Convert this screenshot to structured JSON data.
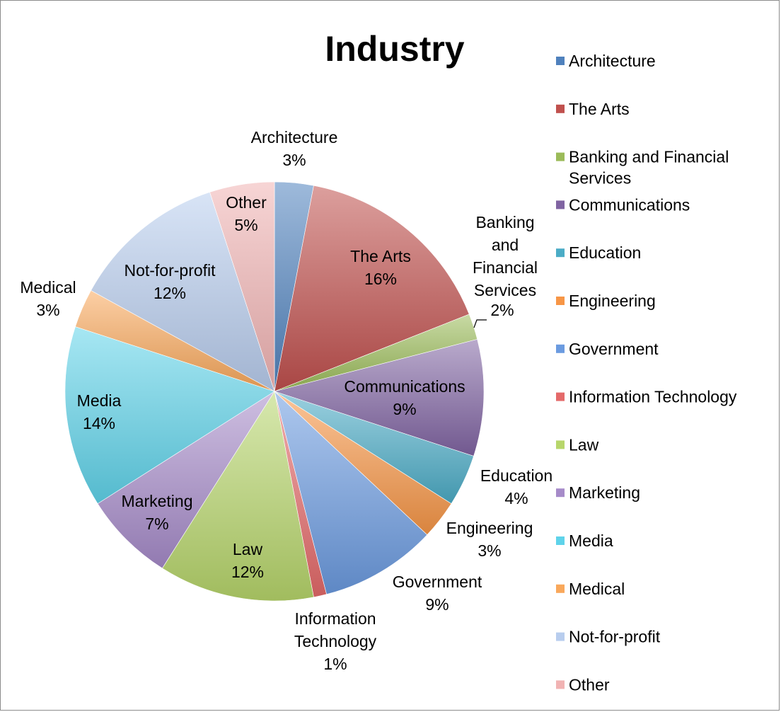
{
  "chart_data": {
    "type": "pie",
    "title": "Industry",
    "legend_position": "right",
    "slices": [
      {
        "name": "Architecture",
        "value": 3,
        "label": "3%",
        "color": "#4f81bd"
      },
      {
        "name": "The Arts",
        "value": 16,
        "label": "16%",
        "color": "#c0504d"
      },
      {
        "name": "Banking and Financial Services",
        "value": 2,
        "label": "2%",
        "color": "#9bbb59"
      },
      {
        "name": "Communications",
        "value": 9,
        "label": "9%",
        "color": "#8064a2"
      },
      {
        "name": "Education",
        "value": 4,
        "label": "4%",
        "color": "#4bacc6"
      },
      {
        "name": "Engineering",
        "value": 3,
        "label": "3%",
        "color": "#f79646"
      },
      {
        "name": "Government",
        "value": 9,
        "label": "9%",
        "color": "#6b9be0"
      },
      {
        "name": "Information Technology",
        "value": 1,
        "label": "1%",
        "color": "#e46a6a"
      },
      {
        "name": "Law",
        "value": 12,
        "label": "12%",
        "color": "#b7d66b"
      },
      {
        "name": "Marketing",
        "value": 7,
        "label": "7%",
        "color": "#a68bc9"
      },
      {
        "name": "Media",
        "value": 14,
        "label": "14%",
        "color": "#5fd3ea"
      },
      {
        "name": "Medical",
        "value": 3,
        "label": "3%",
        "color": "#f9a85b"
      },
      {
        "name": "Not-for-profit",
        "value": 12,
        "label": "12%",
        "color": "#b8cdee"
      },
      {
        "name": "Other",
        "value": 5,
        "label": "5%",
        "color": "#f1b3b3"
      }
    ]
  }
}
